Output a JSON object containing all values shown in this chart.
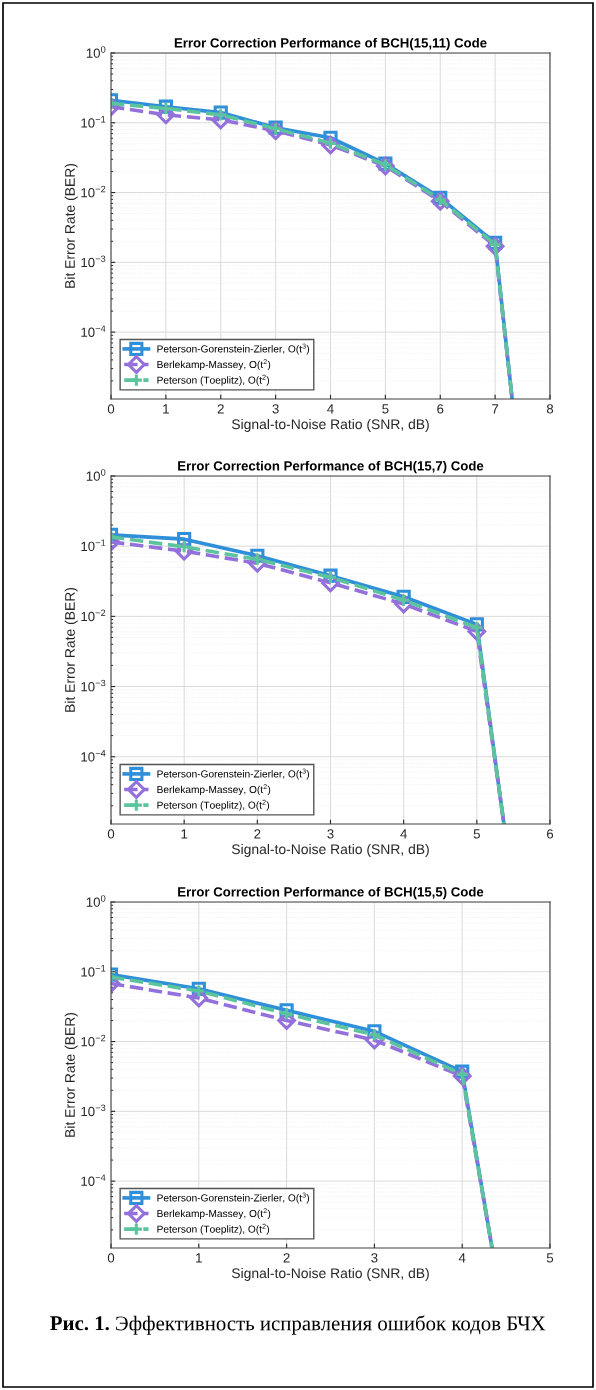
{
  "chart_data": [
    {
      "type": "line",
      "title": "Error Correction Performance of BCH(15,11) Code",
      "xlabel": "Signal-to-Noise Ratio (SNR, dB)",
      "ylabel": "Bit Error Rate (BER)",
      "log": "y",
      "grid": true,
      "legend": "bottom left",
      "x": [
        0,
        1,
        2,
        3,
        4,
        5,
        6,
        7,
        7.31
      ],
      "xlim": [
        0,
        8
      ],
      "xticks": [
        0,
        1,
        2,
        3,
        4,
        5,
        6,
        7,
        8
      ],
      "ylim": [
        1.1e-05,
        1
      ],
      "yticks": [
        {
          "value": 0.0001,
          "label": "10$^{−4}$"
        },
        {
          "value": 0.001,
          "label": "10$^{−3}$"
        },
        {
          "value": 0.01,
          "label": "10$^{−2}$"
        },
        {
          "value": 0.1,
          "label": "10$^{−1}$"
        },
        {
          "value": 1,
          "label": "10$^{0}$"
        }
      ],
      "series": [
        {
          "name": "Peterson-Gorenstein-Zierler, O(t$^{3}$)",
          "color": "#2f8fd8",
          "marker": "square",
          "line_style": "solid",
          "values": [
            0.21,
            0.17,
            0.14,
            0.085,
            0.061,
            0.026,
            0.0084,
            0.0019,
            1.1e-05
          ]
        },
        {
          "name": "Berlekamp-Massey, O(t$^{2}$)",
          "color": "#9370db",
          "marker": "diamond",
          "line_style": "dashed",
          "values": [
            0.17,
            0.13,
            0.11,
            0.077,
            0.048,
            0.024,
            0.0075,
            0.0017,
            1.1e-05
          ]
        },
        {
          "name": "Peterson (Toeplitz), O(t$^{2}$)",
          "color": "#5cc49c",
          "marker": "cross",
          "line_style": "dashed",
          "values": [
            0.19,
            0.16,
            0.13,
            0.082,
            0.051,
            0.025,
            0.0079,
            0.0018,
            1.1e-05
          ]
        }
      ]
    },
    {
      "type": "line",
      "title": "Error Correction Performance of BCH(15,7) Code",
      "xlabel": "Signal-to-Noise Ratio (SNR, dB)",
      "ylabel": "Bit Error Rate (BER)",
      "log": "y",
      "grid": true,
      "legend": "bottom left",
      "x": [
        0,
        1,
        2,
        3,
        4,
        5,
        5.37
      ],
      "xlim": [
        0,
        6
      ],
      "xticks": [
        0,
        1,
        2,
        3,
        4,
        5,
        6
      ],
      "ylim": [
        1.1e-05,
        1
      ],
      "yticks": [
        {
          "value": 0.0001,
          "label": "10$^{−4}$"
        },
        {
          "value": 0.001,
          "label": "10$^{−3}$"
        },
        {
          "value": 0.01,
          "label": "10$^{−2}$"
        },
        {
          "value": 0.1,
          "label": "10$^{−1}$"
        },
        {
          "value": 1,
          "label": "10$^{0}$"
        }
      ],
      "series": [
        {
          "name": "Peterson-Gorenstein-Zierler, O(t$^{3}$)",
          "color": "#2f8fd8",
          "marker": "square",
          "line_style": "solid",
          "values": [
            0.145,
            0.126,
            0.073,
            0.038,
            0.019,
            0.0077,
            1.1e-05
          ]
        },
        {
          "name": "Berlekamp-Massey, O(t$^{2}$)",
          "color": "#9370db",
          "marker": "diamond",
          "line_style": "dashed",
          "values": [
            0.115,
            0.085,
            0.057,
            0.03,
            0.015,
            0.0061,
            1.1e-05
          ]
        },
        {
          "name": "Peterson (Toeplitz), O(t$^{2}$)",
          "color": "#5cc49c",
          "marker": "cross",
          "line_style": "dashed",
          "values": [
            0.135,
            0.098,
            0.065,
            0.036,
            0.017,
            0.0069,
            1.1e-05
          ]
        }
      ]
    },
    {
      "type": "line",
      "title": "Error Correction Performance of BCH(15,5) Code",
      "xlabel": "Signal-to-Noise Ratio (SNR, dB)",
      "ylabel": "Bit Error Rate (BER)",
      "log": "y",
      "grid": true,
      "legend": "bottom left",
      "x": [
        0,
        1,
        2,
        3,
        4,
        4.34
      ],
      "xlim": [
        0,
        5
      ],
      "xticks": [
        0,
        1,
        2,
        3,
        4,
        5
      ],
      "ylim": [
        1.1e-05,
        1
      ],
      "yticks": [
        {
          "value": 0.0001,
          "label": "10$^{−4}$"
        },
        {
          "value": 0.001,
          "label": "10$^{−3}$"
        },
        {
          "value": 0.01,
          "label": "10$^{−2}$"
        },
        {
          "value": 0.1,
          "label": "10$^{−1}$"
        },
        {
          "value": 1,
          "label": "10$^{0}$"
        }
      ],
      "series": [
        {
          "name": "Peterson-Gorenstein-Zierler, O(t$^{3}$)",
          "color": "#2f8fd8",
          "marker": "square",
          "line_style": "solid",
          "values": [
            0.091,
            0.057,
            0.028,
            0.014,
            0.0037,
            1.1e-05
          ]
        },
        {
          "name": "Berlekamp-Massey, O(t$^{2}$)",
          "color": "#9370db",
          "marker": "diamond",
          "line_style": "dashed",
          "values": [
            0.068,
            0.042,
            0.02,
            0.0105,
            0.0032,
            1.1e-05
          ]
        },
        {
          "name": "Peterson (Toeplitz), O(t$^{2}$)",
          "color": "#5cc49c",
          "marker": "cross",
          "line_style": "dashed",
          "values": [
            0.084,
            0.053,
            0.025,
            0.0125,
            0.0034,
            1.1e-05
          ]
        }
      ],
      "annotations": [
        "Рис. 1.",
        "Эффективность исправления ошибок кодов БЧХ"
      ]
    }
  ]
}
